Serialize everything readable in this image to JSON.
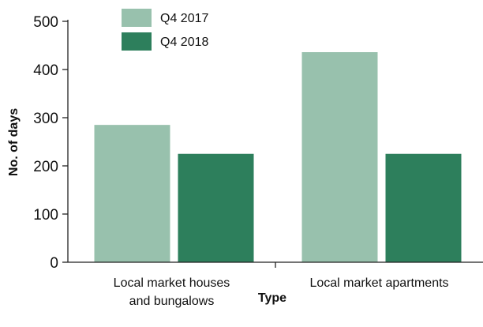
{
  "chart_data": {
    "type": "bar",
    "title": "",
    "xlabel": "Type",
    "ylabel": "No. of days",
    "ylim": [
      0,
      500
    ],
    "yticks": [
      0,
      100,
      200,
      300,
      400,
      500
    ],
    "categories": [
      [
        "Local market houses",
        "and bungalows"
      ],
      [
        "Local market apartments"
      ]
    ],
    "series": [
      {
        "name": "Q4 2017",
        "color": "#98c1ad",
        "values": [
          285,
          436
        ]
      },
      {
        "name": "Q4 2018",
        "color": "#2d7f5c",
        "values": [
          225,
          225
        ]
      }
    ],
    "legend_position": "top-left",
    "grid": false
  }
}
